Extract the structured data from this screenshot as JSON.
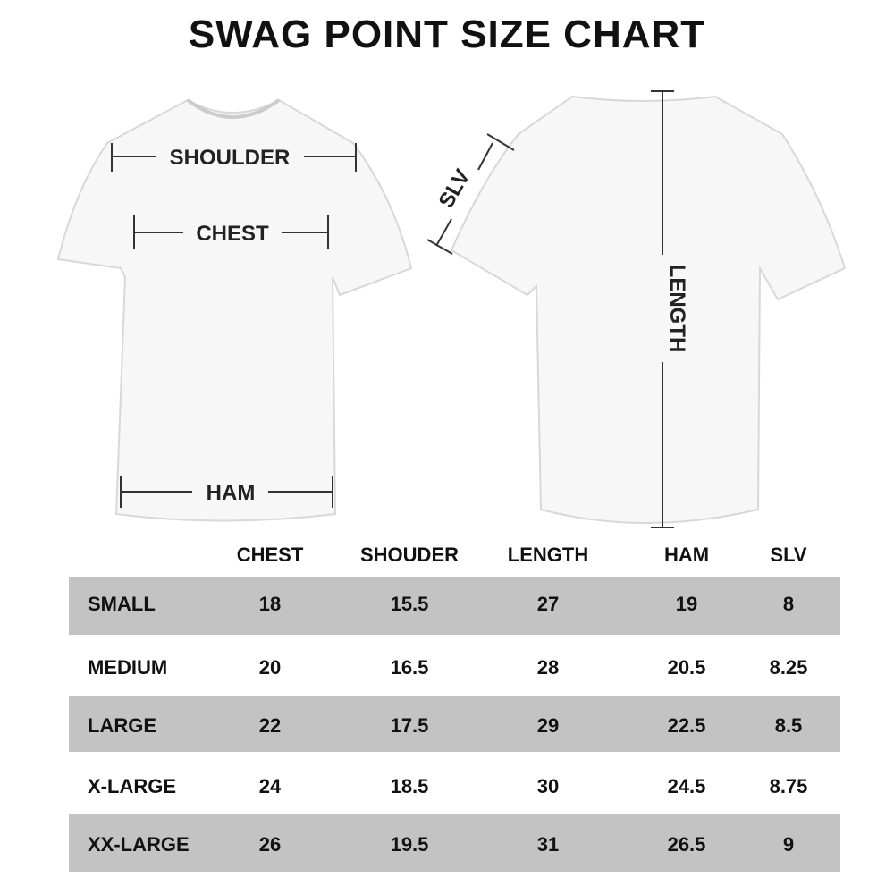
{
  "title": "SWAG POINT SIZE CHART",
  "diagram_labels": {
    "shoulder": "SHOULDER",
    "chest": "CHEST",
    "hem": "HAM",
    "sleeve": "SLV",
    "length": "LENGTH"
  },
  "table": {
    "headers": [
      "CHEST",
      "SHOUDER",
      "LENGTH",
      "HAM",
      "SLV"
    ],
    "rows": [
      {
        "size": "SMALL",
        "values": [
          "18",
          "15.5",
          "27",
          "19",
          "8"
        ]
      },
      {
        "size": "MEDIUM",
        "values": [
          "20",
          "16.5",
          "28",
          "20.5",
          "8.25"
        ]
      },
      {
        "size": "LARGE",
        "values": [
          "22",
          "17.5",
          "29",
          "22.5",
          "8.5"
        ]
      },
      {
        "size": "X-LARGE",
        "values": [
          "24",
          "18.5",
          "30",
          "24.5",
          "8.75"
        ]
      },
      {
        "size": "XX-LARGE",
        "values": [
          "26",
          "19.5",
          "31",
          "26.5",
          "9"
        ]
      }
    ]
  },
  "colors": {
    "band": "#c3c3c3",
    "text": "#111111"
  }
}
